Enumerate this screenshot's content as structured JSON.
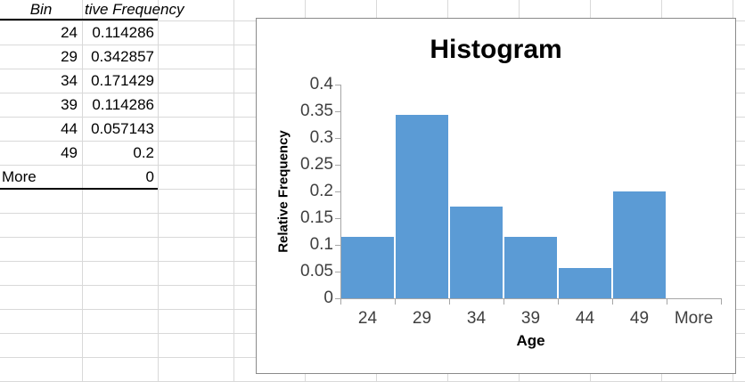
{
  "sheet": {
    "table": {
      "col_a_header": "Bin",
      "col_b_header": "tive Frequency",
      "rows": [
        {
          "bin": "24",
          "freq": "0.114286"
        },
        {
          "bin": "29",
          "freq": "0.342857"
        },
        {
          "bin": "34",
          "freq": "0.171429"
        },
        {
          "bin": "39",
          "freq": "0.114286"
        },
        {
          "bin": "44",
          "freq": "0.057143"
        },
        {
          "bin": "49",
          "freq": "0.2"
        },
        {
          "bin": "More",
          "freq": "0"
        }
      ]
    }
  },
  "chart_data": {
    "type": "bar",
    "title": "Histogram",
    "xlabel": "Age",
    "ylabel": "Relative Frequency",
    "categories": [
      "24",
      "29",
      "34",
      "39",
      "44",
      "49",
      "More"
    ],
    "values": [
      0.114286,
      0.342857,
      0.171429,
      0.114286,
      0.057143,
      0.2,
      0
    ],
    "ylim": [
      0,
      0.4
    ],
    "ytick_labels": [
      "0",
      "0.05",
      "0.1",
      "0.15",
      "0.2",
      "0.25",
      "0.3",
      "0.35",
      "0.4"
    ],
    "gap_width_pct": 0,
    "grid": false,
    "legend": "none",
    "bar_color": "#5B9BD5",
    "axis_line_color": "#A6A6A6",
    "tick_label_color": "#3F3F3F",
    "title_color": "#000000"
  },
  "colors": {
    "sheet_gridline": "#D9D9D9",
    "chart_border": "#8A8A8A",
    "table_rule": "#000000",
    "background": "#FFFFFF"
  }
}
